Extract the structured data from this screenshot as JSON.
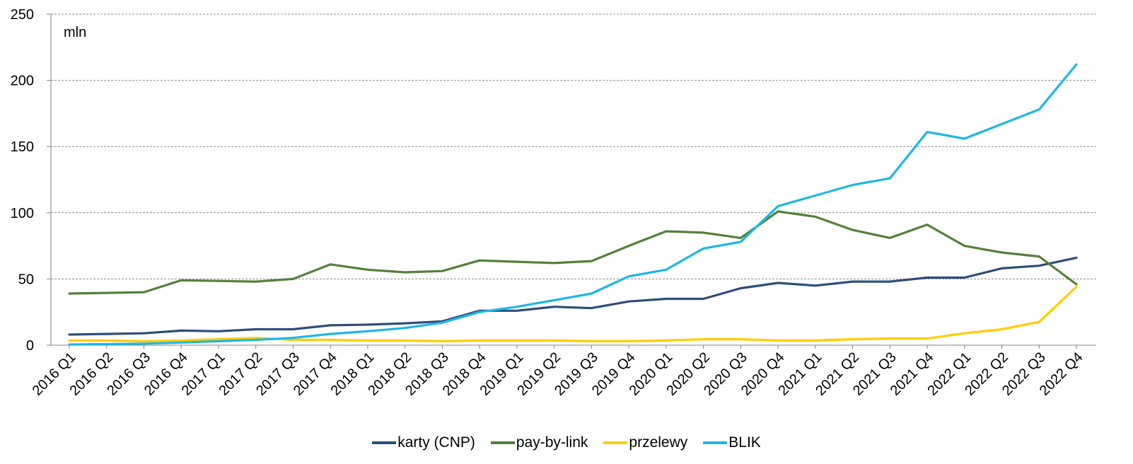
{
  "chart_data": {
    "type": "line",
    "unit_label": "mln",
    "ylim": [
      0,
      250
    ],
    "yticks": [
      0,
      50,
      100,
      150,
      200,
      250
    ],
    "grid": true,
    "legend_position": "bottom",
    "categories": [
      "2016 Q1",
      "2016 Q2",
      "2016 Q3",
      "2016 Q4",
      "2017 Q1",
      "2017 Q2",
      "2017 Q3",
      "2017 Q4",
      "2018 Q1",
      "2018 Q2",
      "2018 Q3",
      "2018 Q4",
      "2019 Q1",
      "2019 Q2",
      "2019 Q3",
      "2019 Q4",
      "2020 Q1",
      "2020 Q2",
      "2020 Q3",
      "2020 Q4",
      "2021 Q1",
      "2021 Q2",
      "2021 Q3",
      "2021 Q4",
      "2022 Q1",
      "2022 Q2",
      "2022 Q3",
      "2022 Q4"
    ],
    "series": [
      {
        "name": "karty (CNP)",
        "color": "#2e4d7b",
        "values": [
          8,
          8.5,
          9,
          11,
          10.5,
          12,
          12,
          15,
          15.5,
          16.5,
          18,
          26,
          26,
          29,
          28,
          33,
          35,
          35,
          43,
          47,
          45,
          48,
          48,
          51,
          51,
          58,
          60,
          66
        ]
      },
      {
        "name": "pay-by-link",
        "color": "#53813a",
        "values": [
          39,
          39.5,
          40,
          49,
          48.5,
          48,
          50,
          61,
          57,
          55,
          56,
          64,
          63,
          62,
          63.5,
          75,
          86,
          85,
          81,
          101,
          97,
          87,
          81,
          91,
          75,
          70,
          67,
          46
        ]
      },
      {
        "name": "przelewy",
        "color": "#ffcc00",
        "values": [
          3.5,
          3.5,
          3,
          3.5,
          4.5,
          5.5,
          4,
          4,
          3.5,
          3.5,
          3,
          3.5,
          3.5,
          3.5,
          3,
          3,
          3.5,
          4.5,
          4.5,
          3.5,
          3.5,
          4.5,
          5,
          5,
          9,
          12,
          17.5,
          44
        ]
      },
      {
        "name": "BLIK",
        "color": "#1cb7e6",
        "values": [
          0.5,
          0.8,
          1.2,
          2,
          3,
          4,
          5.5,
          8.5,
          10.5,
          13,
          17,
          25,
          29,
          34,
          39,
          52,
          57,
          73,
          78,
          105,
          113,
          121,
          126,
          161,
          156,
          167,
          178,
          212
        ]
      }
    ]
  }
}
